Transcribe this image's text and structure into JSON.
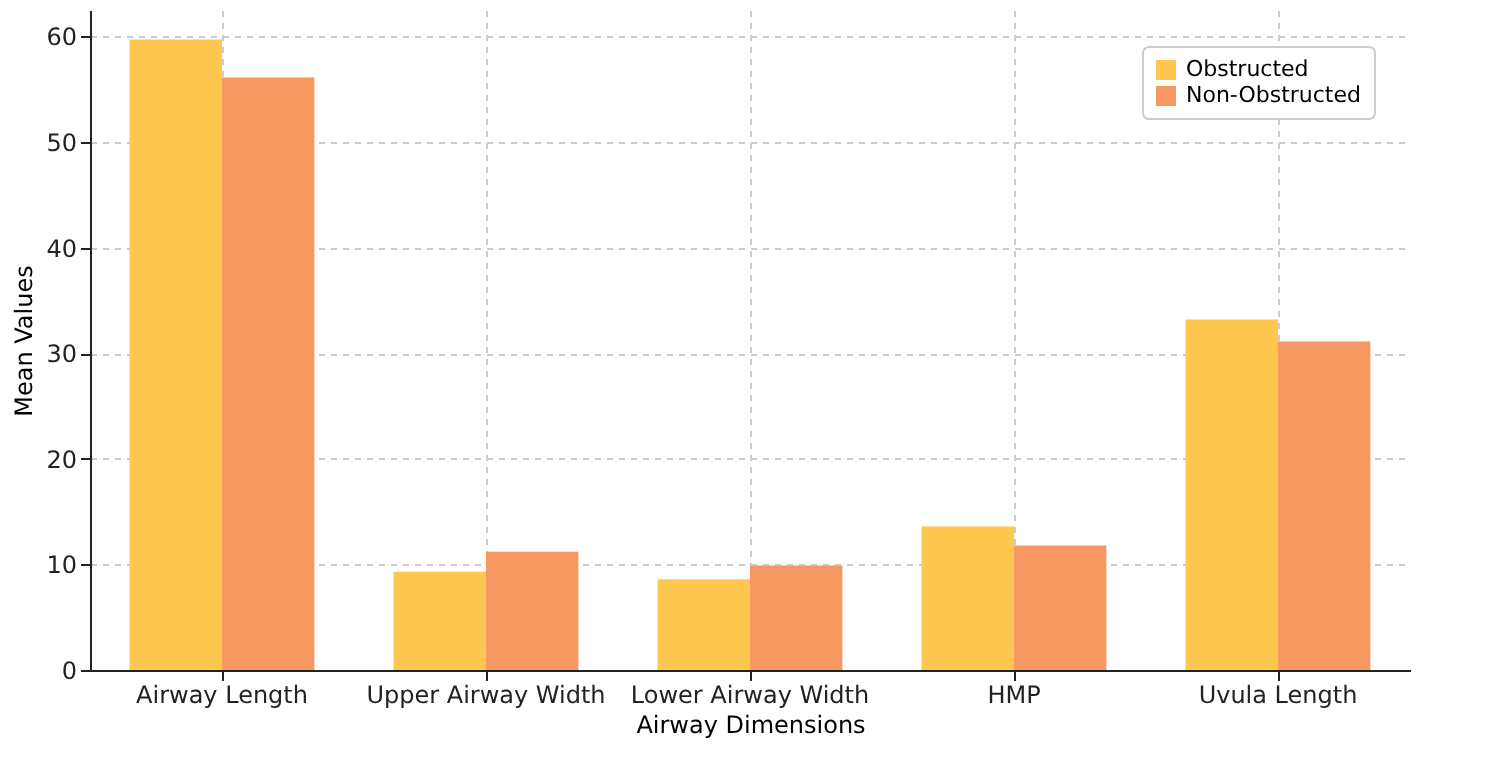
{
  "chart_data": {
    "type": "bar",
    "xlabel": "Airway Dimensions",
    "ylabel": "Mean Values",
    "categories": [
      "Airway Length",
      "Upper Airway Width",
      "Lower Airway Width",
      "HMP",
      "Uvula Length"
    ],
    "series": [
      {
        "name": "Obstructed",
        "color": "#ffc650",
        "values": [
          59.7,
          9.3,
          8.6,
          13.6,
          33.2
        ]
      },
      {
        "name": "Non-Obstructed",
        "color": "#f79862",
        "values": [
          56.1,
          11.2,
          9.9,
          11.8,
          31.1
        ]
      }
    ],
    "ylim": [
      0,
      62.5
    ],
    "yticks": [
      0,
      10,
      20,
      30,
      40,
      50,
      60
    ],
    "grid": true,
    "legend": "top right"
  }
}
